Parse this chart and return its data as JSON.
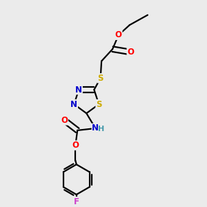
{
  "bg_color": "#ebebeb",
  "fig_size": [
    3.0,
    3.0
  ],
  "dpi": 100,
  "atom_colors": {
    "C": "#000000",
    "H": "#000000",
    "N": "#0000cc",
    "O": "#ff0000",
    "S": "#ccaa00",
    "F": "#cc44cc",
    "NH": "#4499aa"
  },
  "bond_color": "#000000",
  "bond_width": 1.6,
  "font_size_atom": 8.5
}
